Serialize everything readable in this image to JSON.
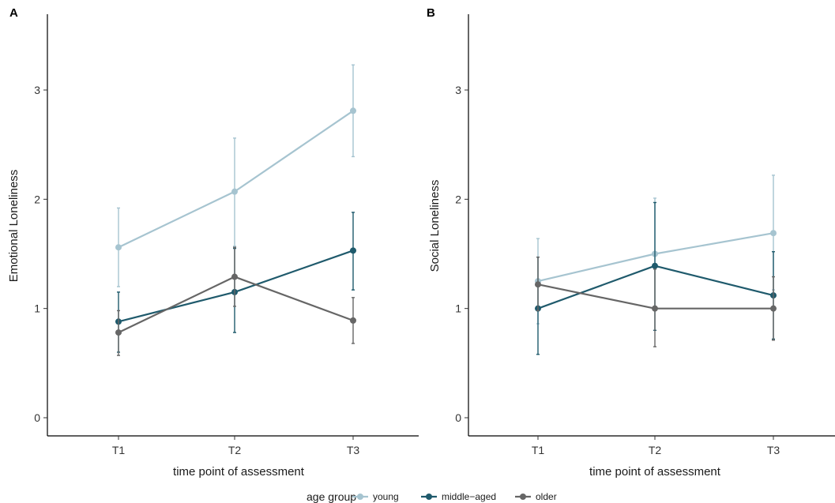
{
  "chart_data": [
    {
      "panel": "A",
      "type": "line",
      "x": [
        "T1",
        "T2",
        "T3"
      ],
      "xlabel": "time point of assessment",
      "ylabel": "Emotional Loneliness",
      "ylim": [
        0,
        3.5
      ],
      "yticks": [
        0,
        1,
        2,
        3
      ],
      "grid": false,
      "series": [
        {
          "name": "young",
          "color": "#a6c4d0",
          "values": [
            1.56,
            2.07,
            2.81
          ],
          "lower": [
            1.2,
            1.57,
            2.39
          ],
          "upper": [
            1.92,
            2.56,
            3.23
          ]
        },
        {
          "name": "middle-aged",
          "color": "#1f5a6c",
          "values": [
            0.88,
            1.15,
            1.53
          ],
          "lower": [
            0.6,
            0.78,
            1.17
          ],
          "upper": [
            1.15,
            1.55,
            1.88
          ]
        },
        {
          "name": "older",
          "color": "#666666",
          "values": [
            0.78,
            1.29,
            0.89
          ],
          "lower": [
            0.57,
            1.02,
            0.68
          ],
          "upper": [
            0.98,
            1.56,
            1.1
          ]
        }
      ]
    },
    {
      "panel": "B",
      "type": "line",
      "x": [
        "T1",
        "T2",
        "T3"
      ],
      "xlabel": "time point of assessment",
      "ylabel": "Social Loneliness",
      "ylim": [
        0,
        3.5
      ],
      "yticks": [
        0,
        1,
        2,
        3
      ],
      "grid": false,
      "series": [
        {
          "name": "young",
          "color": "#a6c4d0",
          "values": [
            1.25,
            1.5,
            1.69
          ],
          "lower": [
            0.86,
            1.0,
            1.17
          ],
          "upper": [
            1.64,
            2.01,
            2.22
          ]
        },
        {
          "name": "middle-aged",
          "color": "#1f5a6c",
          "values": [
            1.0,
            1.39,
            1.12
          ],
          "lower": [
            0.58,
            0.8,
            0.72
          ],
          "upper": [
            1.47,
            1.97,
            1.52
          ]
        },
        {
          "name": "older",
          "color": "#666666",
          "values": [
            1.22,
            1.0,
            1.0
          ],
          "lower": [
            0.98,
            0.65,
            0.71
          ],
          "upper": [
            1.47,
            1.36,
            1.29
          ]
        }
      ]
    }
  ],
  "legend": {
    "title": "age group",
    "position": "bottom",
    "items": [
      "young",
      "middle−aged",
      "older"
    ]
  }
}
